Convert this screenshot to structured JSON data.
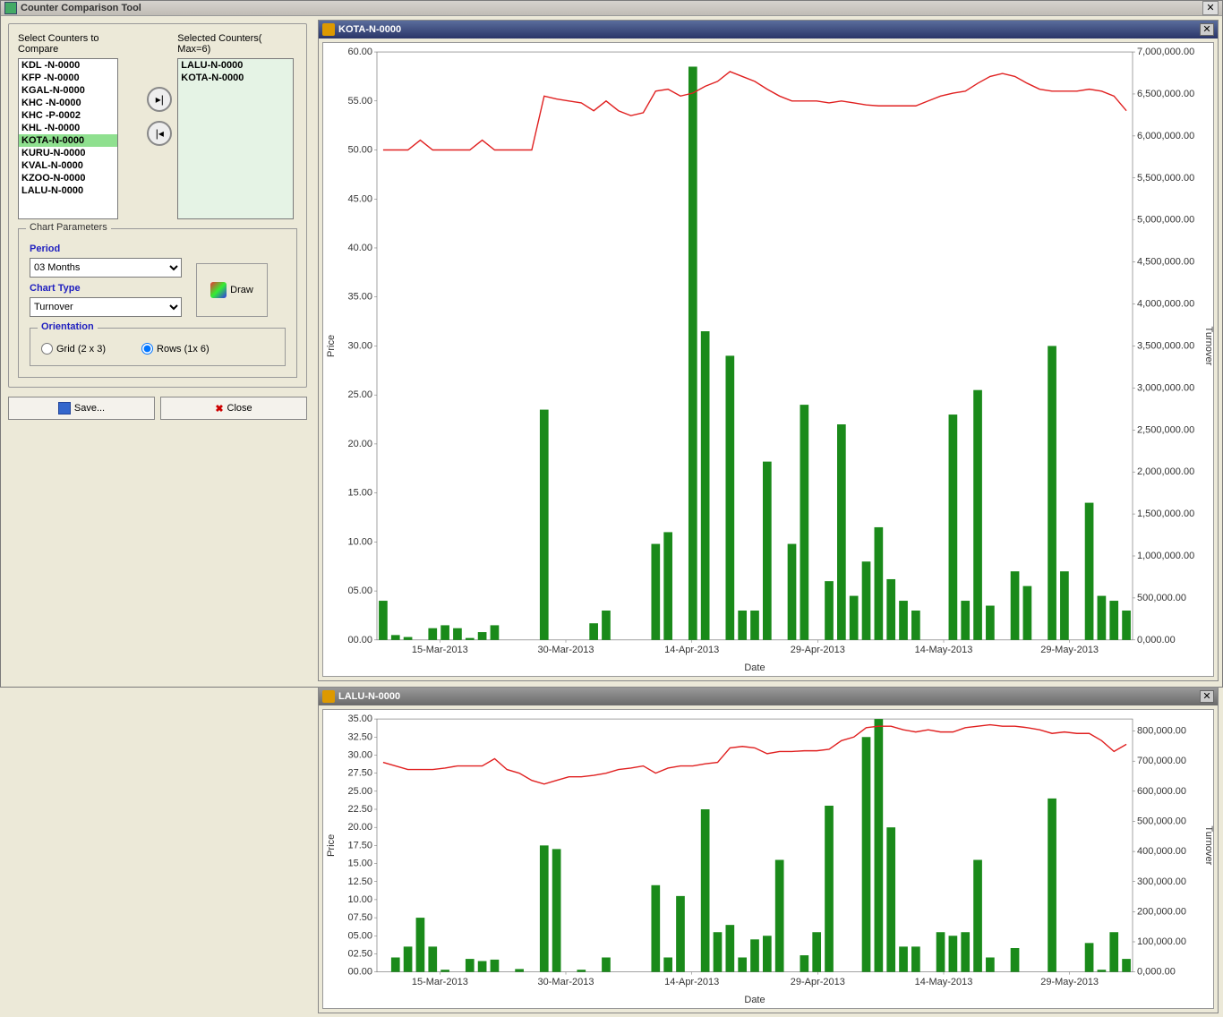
{
  "window": {
    "title": "Counter Comparison Tool"
  },
  "left": {
    "available_label": "Select Counters to Compare",
    "selected_label": "Selected Counters( Max=6)",
    "available": [
      "KDL -N-0000",
      "KFP -N-0000",
      "KGAL-N-0000",
      "KHC -N-0000",
      "KHC -P-0002",
      "KHL -N-0000",
      "KOTA-N-0000",
      "KURU-N-0000",
      "KVAL-N-0000",
      "KZOO-N-0000",
      "LALU-N-0000"
    ],
    "highlighted": "KOTA-N-0000",
    "selected": [
      "LALU-N-0000",
      "KOTA-N-0000"
    ]
  },
  "params": {
    "legend": "Chart Parameters",
    "period_label": "Period",
    "period_value": "03 Months",
    "chart_type_label": "Chart Type",
    "chart_type_value": "Turnover",
    "draw_label": "Draw",
    "orientation_label": "Orientation",
    "grid_label": "Grid (2 x 3)",
    "rows_label": "Rows (1x 6)",
    "orientation_selected": "rows"
  },
  "buttons": {
    "save": "Save...",
    "close": "Close"
  },
  "charts": [
    {
      "title": "KOTA-N-0000",
      "titlebar_color": "blue",
      "x_label": "Date",
      "y_left_label": "Price",
      "y_right_label": "Turnover",
      "x_ticks": [
        "15-Mar-2013",
        "30-Mar-2013",
        "14-Apr-2013",
        "29-Apr-2013",
        "14-May-2013",
        "29-May-2013"
      ],
      "y_left_ticks": [
        0,
        5,
        10,
        15,
        20,
        25,
        30,
        35,
        40,
        45,
        50,
        55,
        60
      ],
      "y_left_tick_labels": [
        "00.00",
        "05.00",
        "10.00",
        "15.00",
        "20.00",
        "25.00",
        "30.00",
        "35.00",
        "40.00",
        "45.00",
        "50.00",
        "55.00",
        "60.00"
      ],
      "y_right_ticks": [
        0,
        500000,
        1000000,
        1500000,
        2000000,
        2500000,
        3000000,
        3500000,
        4000000,
        4500000,
        5000000,
        5500000,
        6000000,
        6500000,
        7000000
      ],
      "y_right_tick_labels": [
        "0,000.00",
        "500,000.00",
        "1,000,000.00",
        "1,500,000.00",
        "2,000,000.00",
        "2,500,000.00",
        "3,000,000.00",
        "3,500,000.00",
        "4,000,000.00",
        "4,500,000.00",
        "5,000,000.00",
        "5,500,000.00",
        "6,000,000.00",
        "6,500,000.00",
        "7,000,000.00"
      ],
      "y_left_max": 60,
      "y_right_max": 7000000,
      "bar_color": "#1a8a1a",
      "line_color": "#e02020",
      "bars": [
        4,
        0.5,
        0.3,
        0,
        1.2,
        1.5,
        1.2,
        0.2,
        0.8,
        1.5,
        0,
        0,
        0,
        23.5,
        0,
        0,
        0,
        1.7,
        3,
        0,
        0,
        0,
        9.8,
        11,
        0,
        58.5,
        31.5,
        0,
        29,
        3,
        3,
        18.2,
        0,
        9.8,
        24,
        0,
        6,
        22,
        4.5,
        8,
        11.5,
        6.2,
        4,
        3,
        0,
        0,
        23,
        4,
        25.5,
        3.5,
        0,
        7,
        5.5,
        0,
        30,
        7,
        0,
        14,
        4.5,
        4,
        3
      ],
      "line": [
        50,
        50,
        50,
        51,
        50,
        50,
        50,
        50,
        51,
        50,
        50,
        50,
        50,
        55.5,
        55.2,
        55,
        54.8,
        54,
        55,
        54,
        53.5,
        53.8,
        56,
        56.2,
        55.5,
        55.8,
        56.5,
        57,
        58,
        57.5,
        57,
        56.2,
        55.5,
        55,
        55,
        55,
        54.8,
        55,
        54.8,
        54.6,
        54.5,
        54.5,
        54.5,
        54.5,
        55,
        55.5,
        55.8,
        56,
        56.8,
        57.5,
        57.8,
        57.5,
        56.8,
        56.2,
        56,
        56,
        56,
        56.2,
        56,
        55.5,
        54
      ]
    },
    {
      "title": "LALU-N-0000",
      "titlebar_color": "grey",
      "x_label": "Date",
      "y_left_label": "Price",
      "y_right_label": "Turnover",
      "x_ticks": [
        "15-Mar-2013",
        "30-Mar-2013",
        "14-Apr-2013",
        "29-Apr-2013",
        "14-May-2013",
        "29-May-2013"
      ],
      "y_left_ticks": [
        0,
        2.5,
        5,
        7.5,
        10,
        12.5,
        15,
        17.5,
        20,
        22.5,
        25,
        27.5,
        30,
        32.5,
        35
      ],
      "y_left_tick_labels": [
        "00.00",
        "02.50",
        "05.00",
        "07.50",
        "10.00",
        "12.50",
        "15.00",
        "17.50",
        "20.00",
        "22.50",
        "25.00",
        "27.50",
        "30.00",
        "32.50",
        "35.00"
      ],
      "y_right_ticks": [
        0,
        100000,
        200000,
        300000,
        400000,
        500000,
        600000,
        700000,
        800000
      ],
      "y_right_tick_labels": [
        "0,000.00",
        "100,000.00",
        "200,000.00",
        "300,000.00",
        "400,000.00",
        "500,000.00",
        "600,000.00",
        "700,000.00",
        "800,000.00"
      ],
      "y_left_max": 35,
      "y_right_max": 840000,
      "bar_color": "#1a8a1a",
      "line_color": "#e02020",
      "bars": [
        0,
        2,
        3.5,
        7.5,
        3.5,
        0.3,
        0,
        1.8,
        1.5,
        1.7,
        0,
        0.4,
        0,
        17.5,
        17,
        0,
        0.3,
        0,
        2,
        0,
        0,
        0,
        12,
        2,
        10.5,
        0,
        22.5,
        5.5,
        6.5,
        2,
        4.5,
        5,
        15.5,
        0,
        2.3,
        5.5,
        23,
        0,
        0,
        32.5,
        35,
        20,
        3.5,
        3.5,
        0,
        5.5,
        5,
        5.5,
        15.5,
        2,
        0,
        3.3,
        0,
        0,
        24,
        0,
        0,
        4,
        0.3,
        5.5,
        1.8
      ],
      "line": [
        29,
        28.5,
        28,
        28,
        28,
        28.2,
        28.5,
        28.5,
        28.5,
        29.5,
        28,
        27.5,
        26.5,
        26,
        26.5,
        27,
        27,
        27.2,
        27.5,
        28,
        28.2,
        28.5,
        27.5,
        28.2,
        28.5,
        28.5,
        28.8,
        29,
        31,
        31.2,
        31,
        30.2,
        30.5,
        30.5,
        30.6,
        30.6,
        30.8,
        32,
        32.5,
        33.8,
        34,
        34,
        33.5,
        33.2,
        33.5,
        33.2,
        33.2,
        33.8,
        34,
        34.2,
        34,
        34,
        33.8,
        33.5,
        33,
        33.2,
        33,
        33,
        32,
        30.5,
        31.5
      ]
    }
  ]
}
